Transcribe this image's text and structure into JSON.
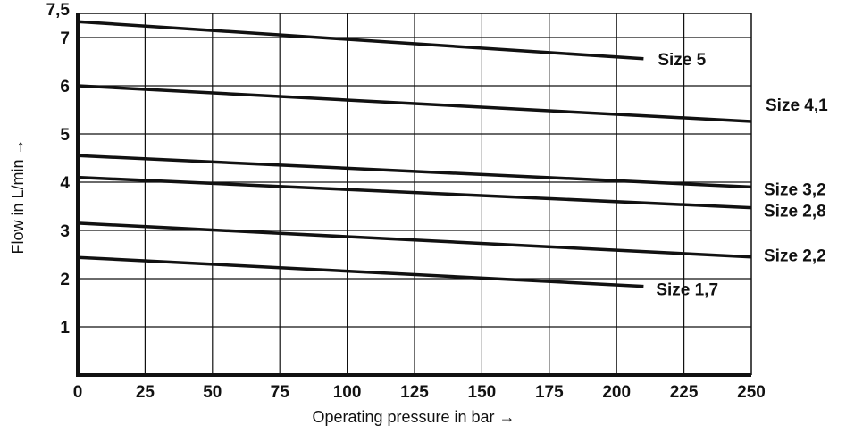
{
  "chart_data": {
    "type": "line",
    "title": "",
    "xlabel": "Operating pressure in bar →",
    "ylabel": "Flow in L/min →",
    "xlim": [
      0,
      250
    ],
    "ylim": [
      0,
      7.5
    ],
    "xticks": [
      0,
      25,
      50,
      75,
      100,
      125,
      150,
      175,
      200,
      225,
      250
    ],
    "yticks": [
      1,
      2,
      3,
      4,
      5,
      6,
      7,
      7.5
    ],
    "xtick_labels": [
      "0",
      "25",
      "50",
      "75",
      "100",
      "125",
      "150",
      "175",
      "200",
      "225",
      "250"
    ],
    "ytick_labels": [
      "1",
      "2",
      "3",
      "4",
      "5",
      "6",
      "7",
      "7,5"
    ],
    "grid": true,
    "series": [
      {
        "name": "Size 5",
        "x": [
          0,
          210
        ],
        "y": [
          7.33,
          6.56
        ]
      },
      {
        "name": "Size 4,1",
        "x": [
          0,
          250
        ],
        "y": [
          6.0,
          5.26
        ]
      },
      {
        "name": "Size 3,2",
        "x": [
          0,
          250
        ],
        "y": [
          4.55,
          3.9
        ]
      },
      {
        "name": "Size 2,8",
        "x": [
          0,
          250
        ],
        "y": [
          4.1,
          3.47
        ]
      },
      {
        "name": "Size 2,2",
        "x": [
          0,
          250
        ],
        "y": [
          3.15,
          2.45
        ]
      },
      {
        "name": "Size 1,7",
        "x": [
          0,
          210
        ],
        "y": [
          2.44,
          1.84
        ]
      }
    ]
  }
}
